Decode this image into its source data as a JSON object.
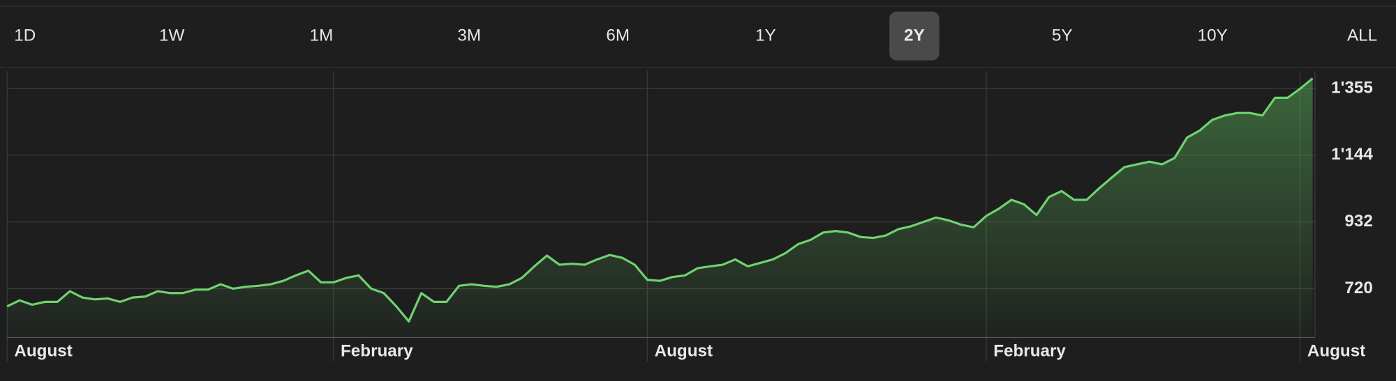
{
  "ranges": [
    "1D",
    "1W",
    "1M",
    "3M",
    "6M",
    "1Y",
    "2Y",
    "5Y",
    "10Y",
    "ALL"
  ],
  "selected_index": 6,
  "chart_data": {
    "type": "area",
    "categories": [
      "August",
      null,
      null,
      null,
      null,
      null,
      null,
      null,
      null,
      null,
      null,
      null,
      null,
      null,
      null,
      null,
      null,
      null,
      null,
      null,
      null,
      null,
      null,
      null,
      null,
      null,
      "February",
      null,
      null,
      null,
      null,
      null,
      null,
      null,
      null,
      null,
      null,
      null,
      null,
      null,
      null,
      null,
      null,
      null,
      null,
      null,
      null,
      null,
      null,
      null,
      null,
      "August",
      null,
      null,
      null,
      null,
      null,
      null,
      null,
      null,
      null,
      null,
      null,
      null,
      null,
      null,
      null,
      null,
      null,
      null,
      null,
      null,
      null,
      null,
      null,
      null,
      null,
      null,
      "February",
      null,
      null,
      null,
      null,
      null,
      null,
      null,
      null,
      null,
      null,
      null,
      null,
      null,
      null,
      null,
      null,
      null,
      null,
      null,
      null,
      null,
      null,
      null,
      null,
      "August",
      null
    ],
    "values": [
      664,
      683,
      669,
      678,
      678,
      712,
      692,
      686,
      689,
      678,
      692,
      695,
      712,
      706,
      706,
      717,
      717,
      734,
      720,
      726,
      729,
      734,
      745,
      762,
      777,
      740,
      740,
      754,
      762,
      720,
      706,
      664,
      616,
      706,
      678,
      678,
      729,
      734,
      729,
      726,
      734,
      754,
      791,
      825,
      796,
      799,
      796,
      813,
      827,
      818,
      796,
      748,
      745,
      757,
      762,
      785,
      791,
      796,
      813,
      791,
      802,
      813,
      833,
      861,
      875,
      898,
      903,
      898,
      884,
      881,
      889,
      909,
      918,
      932,
      946,
      937,
      923,
      915,
      951,
      974,
      1002,
      988,
      954,
      1011,
      1030,
      1002,
      1002,
      1039,
      1073,
      1106,
      1115,
      1123,
      1115,
      1135,
      1200,
      1222,
      1256,
      1270,
      1278,
      1278,
      1270,
      1326,
      1326,
      1355,
      1388
    ],
    "color": "#6fd26f",
    "ylim": [
      565,
      1411
    ],
    "yticks": [
      {
        "value": 720,
        "label": "720"
      },
      {
        "value": 932,
        "label": "932"
      },
      {
        "value": 1144,
        "label": "1'144"
      },
      {
        "value": 1355,
        "label": "1'355"
      }
    ],
    "grid": true
  }
}
